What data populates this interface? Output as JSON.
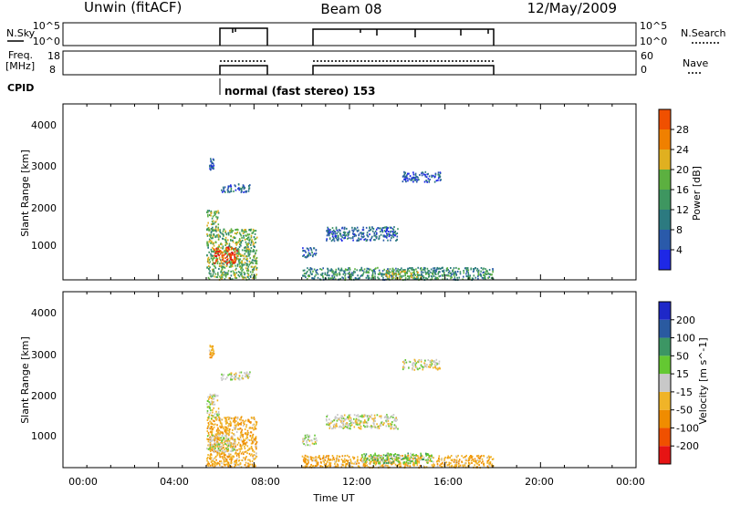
{
  "header": {
    "station": "Unwin (fitACF)",
    "beam": "Beam 08",
    "date": "12/May/2009"
  },
  "strip": {
    "nsky_label": "N.Sky",
    "nsky_ticks": [
      "10^5",
      "10^0"
    ],
    "nsearch_label": "N.Search",
    "freq_label_1": "Freq.",
    "freq_label_2": "[MHz]",
    "freq_ticks": [
      "18",
      "8"
    ],
    "nave_ticks": [
      "60",
      "0"
    ],
    "nave_label": "Nave",
    "cpid_label": "CPID",
    "cpid_text": "normal (fast stereo) 153"
  },
  "x_axis": {
    "label": "Time UT",
    "ticks": [
      "00:00",
      "04:00",
      "08:00",
      "12:00",
      "16:00",
      "20:00",
      "00:00"
    ]
  },
  "power_panel": {
    "ylabel": "Slant Range [km]",
    "yticks": [
      "1000",
      "2000",
      "3000",
      "4000"
    ],
    "colorbar_label": "Power [dB]",
    "colorbar_ticks": [
      "4",
      "8",
      "12",
      "16",
      "20",
      "24",
      "28"
    ]
  },
  "velocity_panel": {
    "ylabel": "Slant Range [km]",
    "yticks": [
      "1000",
      "2000",
      "3000",
      "4000"
    ],
    "colorbar_label": "Velocity [m s^-1]",
    "colorbar_ticks": [
      "-200",
      "-100",
      "-50",
      "-15",
      "15",
      "50",
      "100",
      "200"
    ]
  },
  "chart_data": [
    {
      "type": "heatmap",
      "title": "",
      "xlabel": "Time UT",
      "ylabel": "Slant Range [km]",
      "xlim_hours": [
        0,
        24
      ],
      "ylim": [
        180,
        4500
      ],
      "colorbar": {
        "label": "Power [dB]",
        "range": [
          0,
          30
        ]
      },
      "scatter_regions": [
        {
          "t": [
            6.0,
            8.1
          ],
          "r": [
            200,
            1450
          ],
          "level": 14
        },
        {
          "t": [
            6.3,
            7.3
          ],
          "r": [
            600,
            1000
          ],
          "level": 26
        },
        {
          "t": [
            6.0,
            6.5
          ],
          "r": [
            1400,
            1900
          ],
          "level": 14
        },
        {
          "t": [
            6.6,
            7.8
          ],
          "r": [
            2350,
            2550
          ],
          "level": 6
        },
        {
          "t": [
            6.1,
            6.3
          ],
          "r": [
            2900,
            3200
          ],
          "level": 6
        },
        {
          "t": [
            10.0,
            18.0
          ],
          "r": [
            200,
            500
          ],
          "level": 10
        },
        {
          "t": [
            13.5,
            15.0
          ],
          "r": [
            230,
            420
          ],
          "level": 17
        },
        {
          "t": [
            10.0,
            10.6
          ],
          "r": [
            750,
            1000
          ],
          "level": 6
        },
        {
          "t": [
            11.0,
            14.0
          ],
          "r": [
            1150,
            1500
          ],
          "level": 6
        },
        {
          "t": [
            14.2,
            15.8
          ],
          "r": [
            2600,
            2850
          ],
          "level": 5
        }
      ]
    },
    {
      "type": "heatmap",
      "title": "",
      "xlabel": "Time UT",
      "ylabel": "Slant Range [km]",
      "xlim_hours": [
        0,
        24
      ],
      "ylim": [
        180,
        4500
      ],
      "colorbar": {
        "label": "Velocity [m s^-1]",
        "range": [
          -250,
          250
        ]
      },
      "scatter_regions": [
        {
          "t": [
            6.0,
            8.1
          ],
          "r": [
            200,
            1450
          ],
          "level": -40
        },
        {
          "t": [
            6.0,
            7.2
          ],
          "r": [
            600,
            1000
          ],
          "level": 0
        },
        {
          "t": [
            6.0,
            6.5
          ],
          "r": [
            1400,
            2000
          ],
          "level": 0
        },
        {
          "t": [
            6.6,
            7.8
          ],
          "r": [
            2350,
            2550
          ],
          "level": 0
        },
        {
          "t": [
            6.1,
            6.3
          ],
          "r": [
            2900,
            3200
          ],
          "level": -40
        },
        {
          "t": [
            10.0,
            18.0
          ],
          "r": [
            200,
            500
          ],
          "level": -40
        },
        {
          "t": [
            12.5,
            15.5
          ],
          "r": [
            300,
            550
          ],
          "level": 30
        },
        {
          "t": [
            10.0,
            10.6
          ],
          "r": [
            750,
            1000
          ],
          "level": 0
        },
        {
          "t": [
            11.0,
            14.0
          ],
          "r": [
            1150,
            1500
          ],
          "level": 0
        },
        {
          "t": [
            14.2,
            15.8
          ],
          "r": [
            2600,
            2850
          ],
          "level": 0
        }
      ]
    }
  ],
  "colors": {
    "power_scale": [
      "#1e28e6",
      "#2a5aaa",
      "#2c7a80",
      "#3e9660",
      "#5cb040",
      "#e0b020",
      "#f08000",
      "#f05000",
      "#e61414"
    ],
    "velocity_scale": [
      "#e61414",
      "#f05000",
      "#f08c00",
      "#f0b428",
      "#c8c8c8",
      "#64c832",
      "#3c9664",
      "#2a5aa0",
      "#1e28c8"
    ]
  }
}
